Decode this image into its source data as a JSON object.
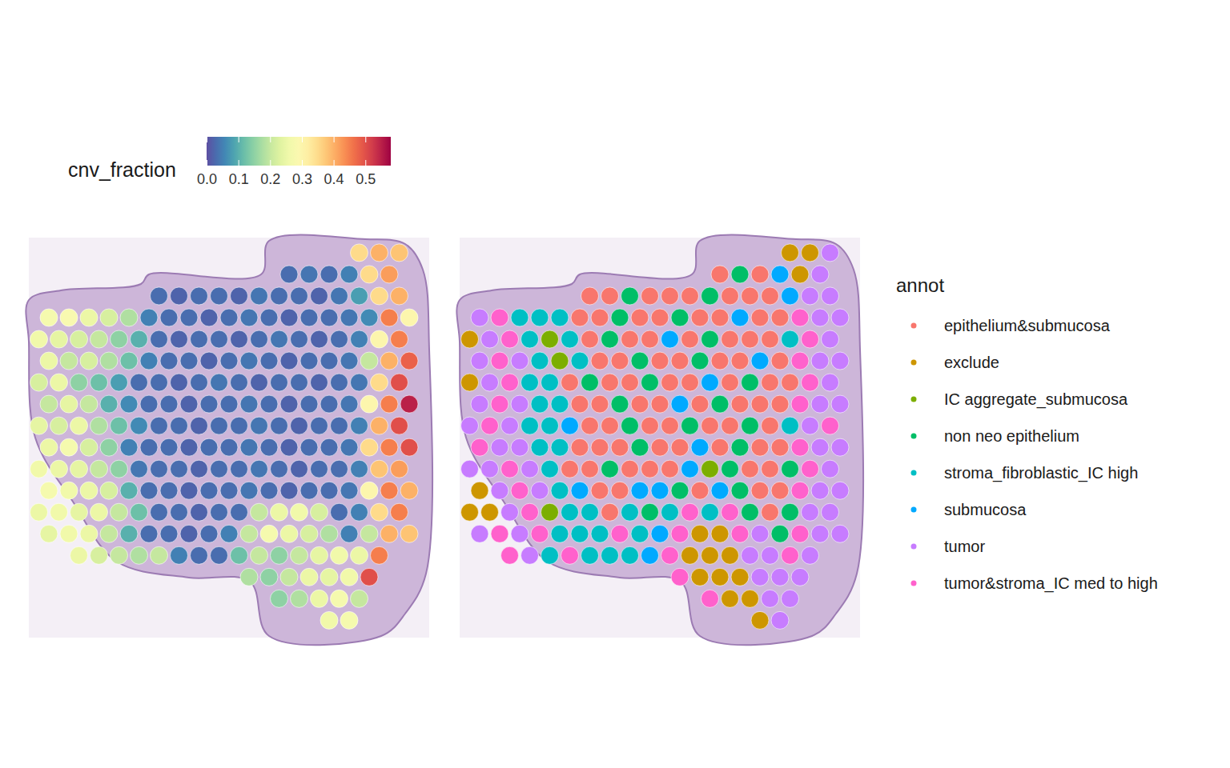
{
  "chart_data": [
    {
      "type": "spatial",
      "colorbar": {
        "title": "cnv_fraction",
        "range": [
          0,
          0.58
        ],
        "ticks": [
          {
            "value": 0,
            "label": "0.0"
          },
          0.1,
          0.2,
          0.3,
          0.4,
          0.5
        ]
      },
      "xlim": [
        -0.5,
        19.5
      ],
      "ylim": [
        -0.7,
        17.8
      ],
      "tick_labels": false,
      "cells": [
        [
          null,
          null,
          null,
          null,
          null,
          null,
          null,
          null,
          null,
          null,
          null,
          null,
          null,
          null,
          null,
          null,
          0.35,
          0.4,
          0.38,
          null
        ],
        [
          null,
          null,
          null,
          null,
          null,
          null,
          null,
          null,
          null,
          null,
          null,
          null,
          0.03,
          0.04,
          0.03,
          0.05,
          0.35,
          0.42,
          null,
          null
        ],
        [
          null,
          null,
          null,
          null,
          null,
          null,
          0.03,
          0.02,
          0.03,
          0.03,
          0.02,
          0.04,
          0.03,
          0.03,
          0.02,
          0.04,
          0.08,
          0.35,
          0.4,
          null
        ],
        [
          0.27,
          0.28,
          0.25,
          0.22,
          0.18,
          0.05,
          0.03,
          0.03,
          0.02,
          0.03,
          0.04,
          0.03,
          0.02,
          0.03,
          0.03,
          0.04,
          0.06,
          0.45,
          0.3,
          null
        ],
        [
          0.26,
          0.24,
          0.22,
          0.2,
          0.15,
          0.1,
          0.03,
          0.02,
          0.03,
          0.03,
          0.02,
          0.03,
          0.04,
          0.03,
          0.02,
          0.03,
          0.05,
          0.3,
          0.45,
          null
        ],
        [
          0.25,
          0.2,
          0.22,
          0.18,
          0.12,
          0.05,
          0.03,
          0.03,
          0.02,
          0.03,
          0.04,
          0.03,
          0.02,
          0.03,
          0.03,
          0.04,
          0.2,
          0.4,
          0.48,
          null
        ],
        [
          0.22,
          0.25,
          0.15,
          0.12,
          0.08,
          0.03,
          0.03,
          0.02,
          0.03,
          0.04,
          0.03,
          0.02,
          0.03,
          0.03,
          0.02,
          0.03,
          0.04,
          0.35,
          0.5,
          null
        ],
        [
          0.2,
          0.24,
          0.2,
          0.1,
          0.06,
          0.03,
          0.03,
          0.02,
          0.03,
          0.03,
          0.04,
          0.03,
          0.02,
          0.03,
          0.03,
          0.04,
          0.3,
          0.45,
          0.55,
          null
        ],
        [
          0.24,
          0.22,
          0.25,
          0.18,
          0.12,
          0.06,
          0.03,
          0.03,
          0.02,
          0.03,
          0.03,
          0.04,
          0.03,
          0.02,
          0.03,
          0.03,
          0.05,
          0.4,
          0.5,
          null
        ],
        [
          0.25,
          0.27,
          0.22,
          0.15,
          0.05,
          0.03,
          0.03,
          0.02,
          0.03,
          0.03,
          0.04,
          0.03,
          0.02,
          0.03,
          0.03,
          0.04,
          0.35,
          0.45,
          0.5,
          null
        ],
        [
          0.26,
          0.25,
          0.24,
          0.2,
          0.15,
          0.04,
          0.03,
          0.03,
          0.02,
          0.03,
          0.03,
          0.04,
          0.03,
          0.02,
          0.03,
          0.03,
          0.05,
          0.38,
          0.42,
          null
        ],
        [
          0.27,
          0.26,
          0.25,
          0.22,
          0.1,
          0.03,
          0.03,
          0.02,
          0.03,
          0.03,
          0.04,
          0.03,
          0.02,
          0.03,
          0.03,
          0.04,
          0.3,
          0.45,
          0.4,
          null
        ],
        [
          0.25,
          0.26,
          0.24,
          0.25,
          0.2,
          0.12,
          0.03,
          0.03,
          0.02,
          0.03,
          0.03,
          0.2,
          0.25,
          0.26,
          0.22,
          0.03,
          0.05,
          0.35,
          0.45,
          null
        ],
        [
          0.24,
          0.26,
          0.25,
          0.2,
          0.1,
          0.03,
          0.03,
          0.02,
          0.03,
          0.05,
          0.2,
          0.27,
          0.25,
          0.22,
          0.18,
          0.05,
          0.2,
          0.4,
          0.38,
          null
        ],
        [
          null,
          null,
          0.25,
          0.22,
          0.2,
          0.18,
          0.2,
          0.05,
          0.03,
          0.03,
          0.12,
          0.2,
          0.15,
          0.2,
          0.24,
          0.26,
          0.25,
          0.45,
          null,
          null
        ],
        [
          null,
          null,
          null,
          null,
          null,
          null,
          null,
          null,
          null,
          null,
          0.18,
          0.15,
          0.2,
          0.25,
          0.24,
          0.26,
          0.5,
          null,
          null,
          null
        ],
        [
          null,
          null,
          null,
          null,
          null,
          null,
          null,
          null,
          null,
          null,
          null,
          null,
          0.15,
          0.18,
          0.25,
          0.27,
          0.2,
          null,
          null,
          null
        ],
        [
          null,
          null,
          null,
          null,
          null,
          null,
          null,
          null,
          null,
          null,
          null,
          null,
          null,
          null,
          0.26,
          0.27,
          null,
          null,
          null,
          null
        ]
      ]
    },
    {
      "type": "spatial",
      "legend_title": "annot",
      "legend": "right",
      "categories": [
        "epithelium&submucosa",
        "exclude",
        "IC aggregate_submucosa",
        "non neo epithelium",
        "stroma_fibroblastic_IC high",
        "submucosa",
        "tumor",
        "tumor&stroma_IC med to high"
      ],
      "colors": [
        "#F8766D",
        "#CD9600",
        "#7CAE00",
        "#00BE67",
        "#00BFC4",
        "#00A9FF",
        "#C77CFF",
        "#FF61CC"
      ],
      "xlim": [
        -0.5,
        19.5
      ],
      "ylim": [
        -0.7,
        17.8
      ],
      "tick_labels": false,
      "cells": [
        [
          null,
          null,
          null,
          null,
          null,
          null,
          null,
          null,
          null,
          null,
          null,
          null,
          null,
          null,
          null,
          null,
          1,
          1,
          6,
          null
        ],
        [
          null,
          null,
          null,
          null,
          null,
          null,
          null,
          null,
          null,
          null,
          null,
          null,
          0,
          3,
          0,
          5,
          1,
          6,
          null,
          null
        ],
        [
          null,
          null,
          null,
          null,
          null,
          null,
          0,
          0,
          3,
          0,
          0,
          0,
          3,
          0,
          0,
          0,
          5,
          6,
          6,
          null
        ],
        [
          6,
          7,
          4,
          4,
          4,
          0,
          0,
          3,
          0,
          0,
          3,
          0,
          0,
          5,
          0,
          0,
          7,
          6,
          6,
          null
        ],
        [
          1,
          6,
          7,
          4,
          2,
          4,
          0,
          3,
          0,
          0,
          5,
          0,
          3,
          0,
          0,
          0,
          4,
          7,
          6,
          null
        ],
        [
          6,
          7,
          6,
          4,
          2,
          4,
          0,
          0,
          3,
          0,
          0,
          3,
          0,
          0,
          5,
          0,
          7,
          6,
          6,
          null
        ],
        [
          1,
          6,
          7,
          4,
          4,
          0,
          3,
          0,
          0,
          3,
          0,
          0,
          5,
          0,
          3,
          0,
          0,
          7,
          6,
          null
        ],
        [
          6,
          7,
          6,
          4,
          4,
          0,
          0,
          3,
          0,
          0,
          5,
          0,
          3,
          0,
          0,
          0,
          7,
          6,
          6,
          null
        ],
        [
          6,
          7,
          6,
          4,
          4,
          5,
          0,
          0,
          3,
          0,
          0,
          3,
          0,
          0,
          3,
          0,
          4,
          6,
          7,
          null
        ],
        [
          7,
          6,
          6,
          4,
          4,
          0,
          0,
          0,
          3,
          0,
          0,
          5,
          0,
          3,
          0,
          0,
          7,
          6,
          6,
          null
        ],
        [
          6,
          6,
          7,
          6,
          4,
          0,
          0,
          3,
          0,
          0,
          0,
          5,
          2,
          3,
          0,
          0,
          3,
          7,
          6,
          null
        ],
        [
          1,
          6,
          7,
          6,
          4,
          5,
          0,
          0,
          5,
          5,
          3,
          0,
          5,
          3,
          0,
          0,
          7,
          6,
          6,
          null
        ],
        [
          1,
          1,
          6,
          7,
          2,
          4,
          4,
          0,
          4,
          3,
          4,
          7,
          4,
          7,
          3,
          0,
          3,
          6,
          6,
          null
        ],
        [
          6,
          7,
          6,
          7,
          4,
          4,
          4,
          7,
          4,
          5,
          7,
          1,
          1,
          7,
          6,
          3,
          7,
          6,
          6,
          null
        ],
        [
          null,
          null,
          7,
          6,
          4,
          7,
          4,
          4,
          4,
          5,
          7,
          1,
          1,
          1,
          6,
          6,
          7,
          6,
          null,
          null
        ],
        [
          null,
          null,
          null,
          null,
          null,
          null,
          null,
          null,
          null,
          null,
          7,
          1,
          1,
          1,
          6,
          6,
          6,
          null,
          null,
          null
        ],
        [
          null,
          null,
          null,
          null,
          null,
          null,
          null,
          null,
          null,
          null,
          null,
          null,
          7,
          1,
          1,
          6,
          6,
          null,
          null,
          null
        ],
        [
          null,
          null,
          null,
          null,
          null,
          null,
          null,
          null,
          null,
          null,
          null,
          null,
          null,
          null,
          1,
          6,
          null,
          null,
          null,
          null
        ]
      ]
    }
  ]
}
